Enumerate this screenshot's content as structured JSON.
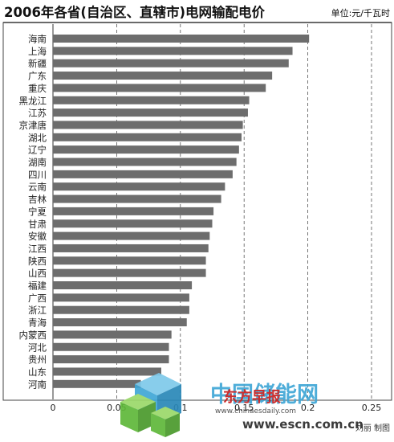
{
  "chart_data": {
    "type": "bar",
    "orientation": "horizontal",
    "title": "2006年各省(自治区、直辖市)电网输配电价",
    "unit_label": "单位:元/千瓦时",
    "categories": [
      "海南",
      "上海",
      "新疆",
      "广东",
      "重庆",
      "黑龙江",
      "江苏",
      "京津唐",
      "湖北",
      "辽宁",
      "湖南",
      "四川",
      "云南",
      "吉林",
      "宁夏",
      "甘肃",
      "安徽",
      "江西",
      "陕西",
      "山西",
      "福建",
      "广西",
      "浙江",
      "青海",
      "内蒙西",
      "河北",
      "贵州",
      "山东",
      "河南"
    ],
    "values": [
      0.201,
      0.188,
      0.185,
      0.172,
      0.167,
      0.154,
      0.153,
      0.149,
      0.148,
      0.146,
      0.144,
      0.141,
      0.135,
      0.132,
      0.126,
      0.125,
      0.123,
      0.122,
      0.12,
      0.12,
      0.109,
      0.107,
      0.107,
      0.105,
      0.093,
      0.091,
      0.091,
      0.085,
      0.069
    ],
    "x_ticks": [
      "0",
      "0.05",
      "0.1",
      "0.15",
      "0.2",
      "0.25"
    ],
    "xlim": [
      0,
      0.25
    ],
    "grid": "vertical-dashed",
    "bar_color": "#6d6d6d"
  },
  "credit": "刘丽 制图",
  "watermark": {
    "site_name": "中国储能网",
    "newspaper": "东方早报",
    "url_top": "www.chinaesdaily.com",
    "url_main": "www.escn.com.cn"
  }
}
